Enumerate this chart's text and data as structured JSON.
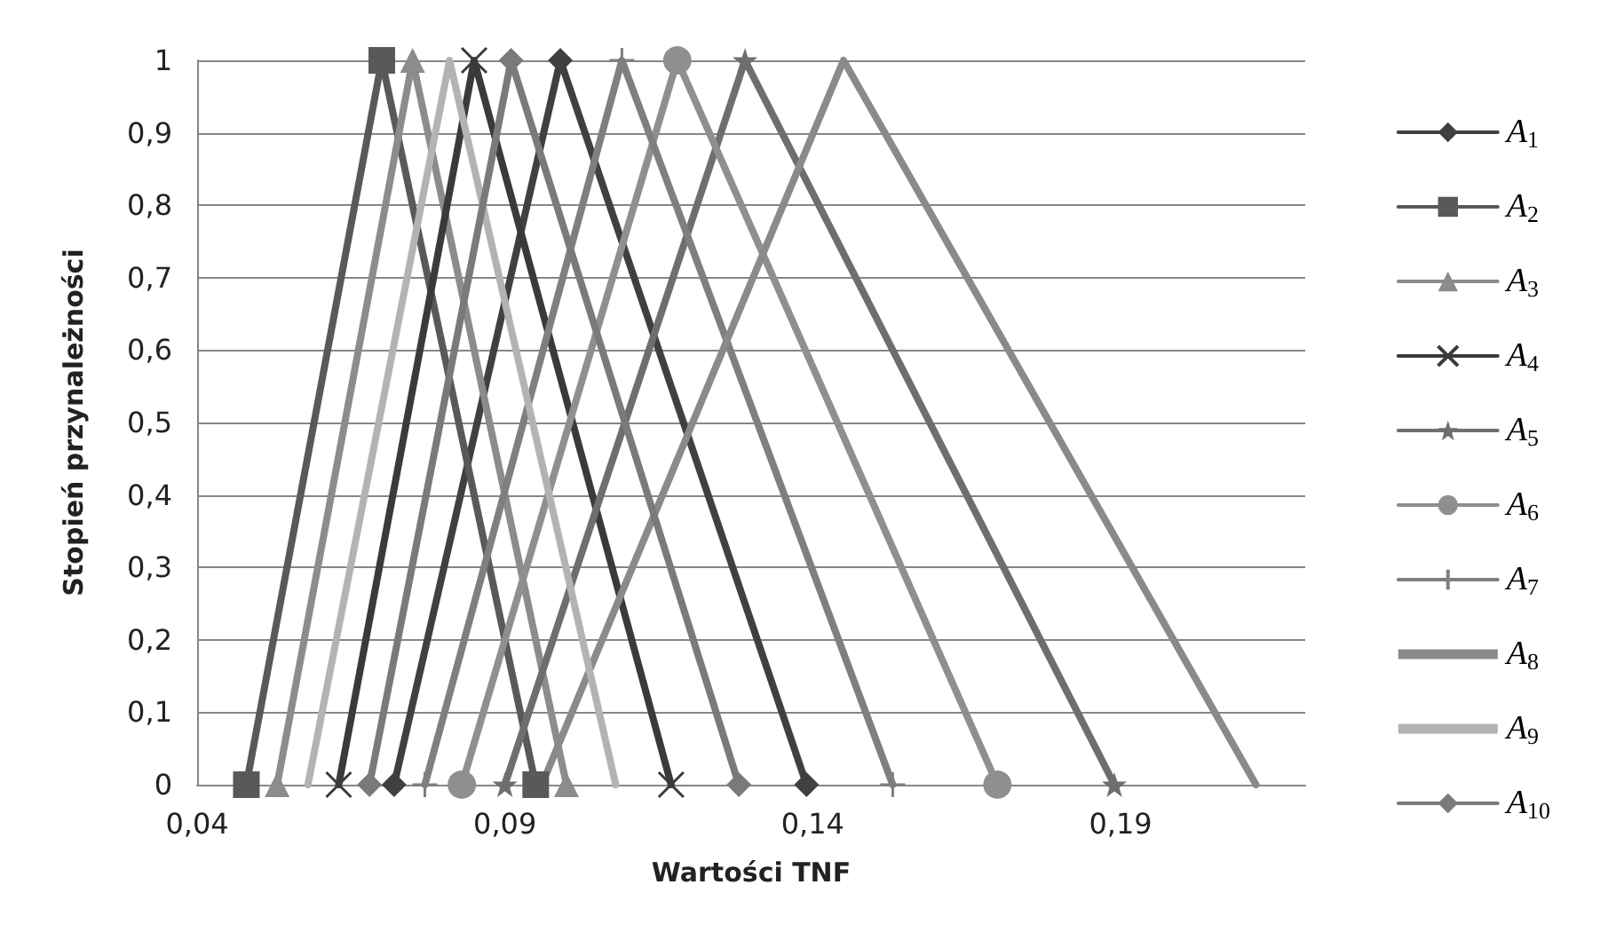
{
  "chart_data": {
    "type": "line",
    "xlabel": "Wartości TNF",
    "ylabel": "Stopień przynależności",
    "xlim": [
      0.04,
      0.22
    ],
    "xticks": [
      {
        "value": 0.04,
        "label": "0,04"
      },
      {
        "value": 0.09,
        "label": "0,09"
      },
      {
        "value": 0.14,
        "label": "0,14"
      },
      {
        "value": 0.19,
        "label": "0,19"
      }
    ],
    "ylim": [
      0,
      1
    ],
    "yticks": [
      {
        "value": 0,
        "label": "0"
      },
      {
        "value": 0.1,
        "label": "0,1"
      },
      {
        "value": 0.2,
        "label": "0,2"
      },
      {
        "value": 0.3,
        "label": "0,3"
      },
      {
        "value": 0.4,
        "label": "0,4"
      },
      {
        "value": 0.5,
        "label": "0,5"
      },
      {
        "value": 0.6,
        "label": "0,6"
      },
      {
        "value": 0.7,
        "label": "0,7"
      },
      {
        "value": 0.8,
        "label": "0,8"
      },
      {
        "value": 0.9,
        "label": "0,9"
      },
      {
        "value": 1,
        "label": "1"
      }
    ],
    "grid": "y",
    "legend": "right",
    "line_style": "solid",
    "series": [
      {
        "name": "A$_{1}$",
        "color": "#404040",
        "marker": "diamond",
        "x": [
          0.072,
          0.099,
          0.139
        ],
        "values": [
          0,
          1,
          0
        ]
      },
      {
        "name": "A$_{2}$",
        "color": "#595959",
        "marker": "square",
        "x": [
          0.048,
          0.07,
          0.095
        ],
        "values": [
          0,
          1,
          0
        ]
      },
      {
        "name": "A$_{3}$",
        "color": "#8c8c8c",
        "marker": "triangle",
        "x": [
          0.053,
          0.075,
          0.1
        ],
        "values": [
          0,
          1,
          0
        ]
      },
      {
        "name": "A$_{4}$",
        "color": "#3a3a3a",
        "marker": "cross",
        "x": [
          0.063,
          0.085,
          0.117
        ],
        "values": [
          0,
          1,
          0
        ]
      },
      {
        "name": "A$_{5}$",
        "color": "#6e6e6e",
        "marker": "star",
        "x": [
          0.09,
          0.129,
          0.189
        ],
        "values": [
          0,
          1,
          0
        ]
      },
      {
        "name": "A$_{6}$",
        "color": "#8f8f8f",
        "marker": "circle",
        "x": [
          0.083,
          0.118,
          0.17
        ],
        "values": [
          0,
          1,
          0
        ]
      },
      {
        "name": "A$_{7}$",
        "color": "#7f7f7f",
        "marker": "plus",
        "x": [
          0.077,
          0.109,
          0.153
        ],
        "values": [
          0,
          1,
          0
        ]
      },
      {
        "name": "A$_{8}$",
        "color": "#8a8a8a",
        "marker": "none",
        "x": [
          0.096,
          0.145,
          0.212
        ],
        "values": [
          0,
          1,
          0
        ]
      },
      {
        "name": "A$_{9}$",
        "color": "#b3b3b3",
        "marker": "none",
        "x": [
          0.058,
          0.081,
          0.108
        ],
        "values": [
          0,
          1,
          0
        ]
      },
      {
        "name": "A$_{10}$",
        "color": "#7a7a7a",
        "marker": "diamond",
        "x": [
          0.068,
          0.091,
          0.128
        ],
        "values": [
          0,
          1,
          0
        ]
      }
    ]
  }
}
